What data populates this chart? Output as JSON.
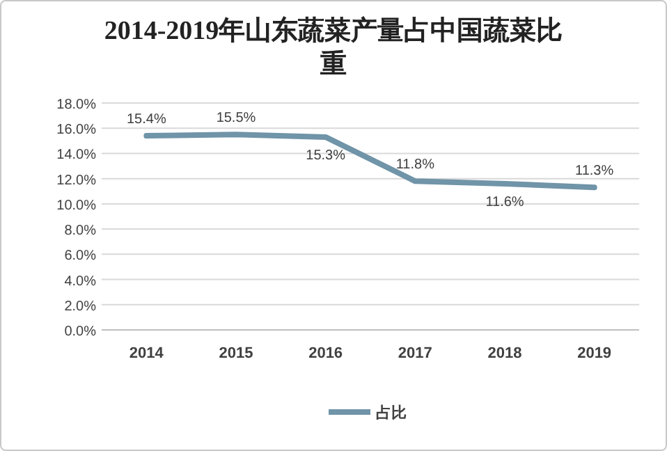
{
  "chart_data": {
    "type": "line",
    "title": "2014-2019年山东蔬菜产量占中国蔬菜比重",
    "categories": [
      "2014",
      "2015",
      "2016",
      "2017",
      "2018",
      "2019"
    ],
    "series": [
      {
        "name": "占比",
        "color": "#7094a8",
        "values": [
          15.4,
          15.5,
          15.3,
          11.8,
          11.6,
          11.3
        ]
      }
    ],
    "value_labels": [
      "15.4%",
      "15.5%",
      "15.3%",
      "11.8%",
      "11.6%",
      "11.3%"
    ],
    "ylim": [
      0,
      18
    ],
    "yticks": [
      {
        "value": 0,
        "label": "0.0%"
      },
      {
        "value": 2,
        "label": "2.0%"
      },
      {
        "value": 4,
        "label": "4.0%"
      },
      {
        "value": 6,
        "label": "6.0%"
      },
      {
        "value": 8,
        "label": "8.0%"
      },
      {
        "value": 10,
        "label": "10.0%"
      },
      {
        "value": 12,
        "label": "12.0%"
      },
      {
        "value": 14,
        "label": "14.0%"
      },
      {
        "value": 16,
        "label": "16.0%"
      },
      {
        "value": 18,
        "label": "18.0%"
      }
    ],
    "grid": "y",
    "legend": "bottom",
    "marker": "none",
    "line_style": "solid"
  }
}
